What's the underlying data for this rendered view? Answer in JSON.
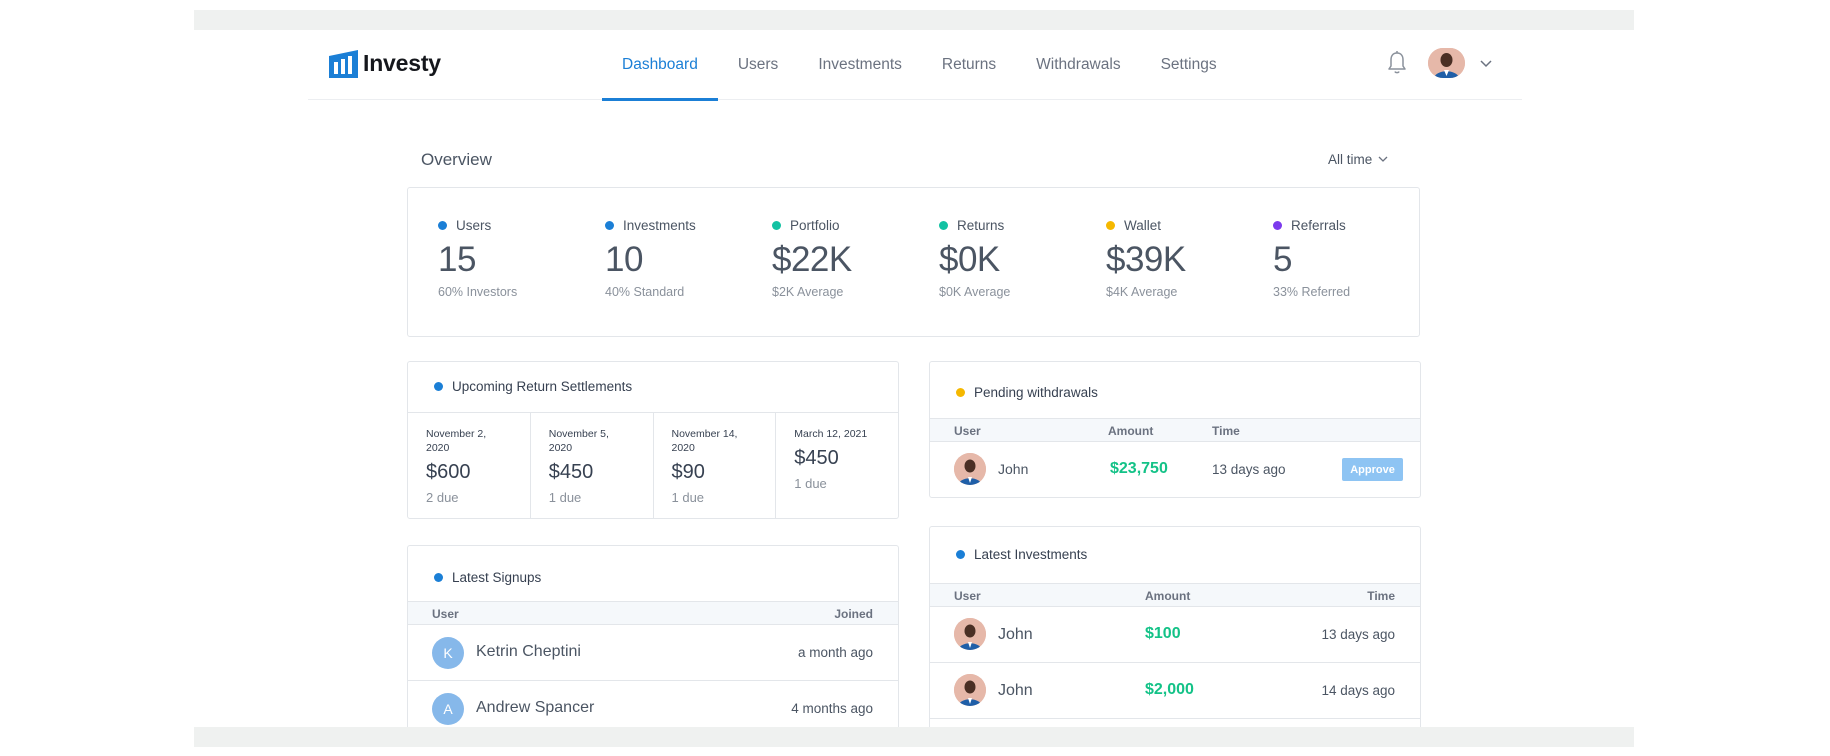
{
  "brand": {
    "name": "Investy",
    "color": "#1b7fd6"
  },
  "nav": {
    "items": [
      {
        "label": "Dashboard",
        "active": true
      },
      {
        "label": "Users"
      },
      {
        "label": "Investments"
      },
      {
        "label": "Returns"
      },
      {
        "label": "Withdrawals"
      },
      {
        "label": "Settings"
      }
    ],
    "icons": [
      "bell-icon",
      "user-avatar",
      "chevron-down-icon"
    ]
  },
  "overview": {
    "title": "Overview",
    "filter": "All time",
    "stats": [
      {
        "label": "Users",
        "value": "15",
        "sub": "60% Investors",
        "color": "#1b7fd6"
      },
      {
        "label": "Investments",
        "value": "10",
        "sub": "40% Standard",
        "color": "#1b7fd6"
      },
      {
        "label": "Portfolio",
        "value": "$22K",
        "sub": "$2K Average",
        "color": "#13c2a3"
      },
      {
        "label": "Returns",
        "value": "$0K",
        "sub": "$0K Average",
        "color": "#13c2a3"
      },
      {
        "label": "Wallet",
        "value": "$39K",
        "sub": "$4K Average",
        "color": "#f5b800"
      },
      {
        "label": "Referrals",
        "value": "5",
        "sub": "33% Referred",
        "color": "#7c3aed"
      }
    ]
  },
  "settlements": {
    "title": "Upcoming Return Settlements",
    "dot_color": "#1b7fd6",
    "items": [
      {
        "date": "November 2, 2020",
        "amount": "$600",
        "due": "2 due"
      },
      {
        "date": "November 5, 2020",
        "amount": "$450",
        "due": "1 due"
      },
      {
        "date": "November 14, 2020",
        "amount": "$90",
        "due": "1 due"
      },
      {
        "date": "March 12, 2021",
        "amount": "$450",
        "due": "1 due"
      }
    ]
  },
  "signups": {
    "title": "Latest Signups",
    "dot_color": "#1b7fd6",
    "columns": [
      "User",
      "Joined"
    ],
    "rows": [
      {
        "initial": "K",
        "name": "Ketrin Cheptini",
        "joined": "a month ago"
      },
      {
        "initial": "A",
        "name": "Andrew Spancer",
        "joined": "4 months ago"
      }
    ]
  },
  "withdrawals": {
    "title": "Pending withdrawals",
    "dot_color": "#f5b800",
    "columns": [
      "User",
      "Amount",
      "Time"
    ],
    "rows": [
      {
        "name": "John",
        "amount": "$23,750",
        "time": "13 days ago",
        "action": "Approve"
      }
    ]
  },
  "investments": {
    "title": "Latest Investments",
    "dot_color": "#1b7fd6",
    "columns": [
      "User",
      "Amount",
      "Time"
    ],
    "rows": [
      {
        "name": "John",
        "amount": "$100",
        "time": "13 days ago"
      },
      {
        "name": "John",
        "amount": "$2,000",
        "time": "14 days ago"
      }
    ]
  }
}
